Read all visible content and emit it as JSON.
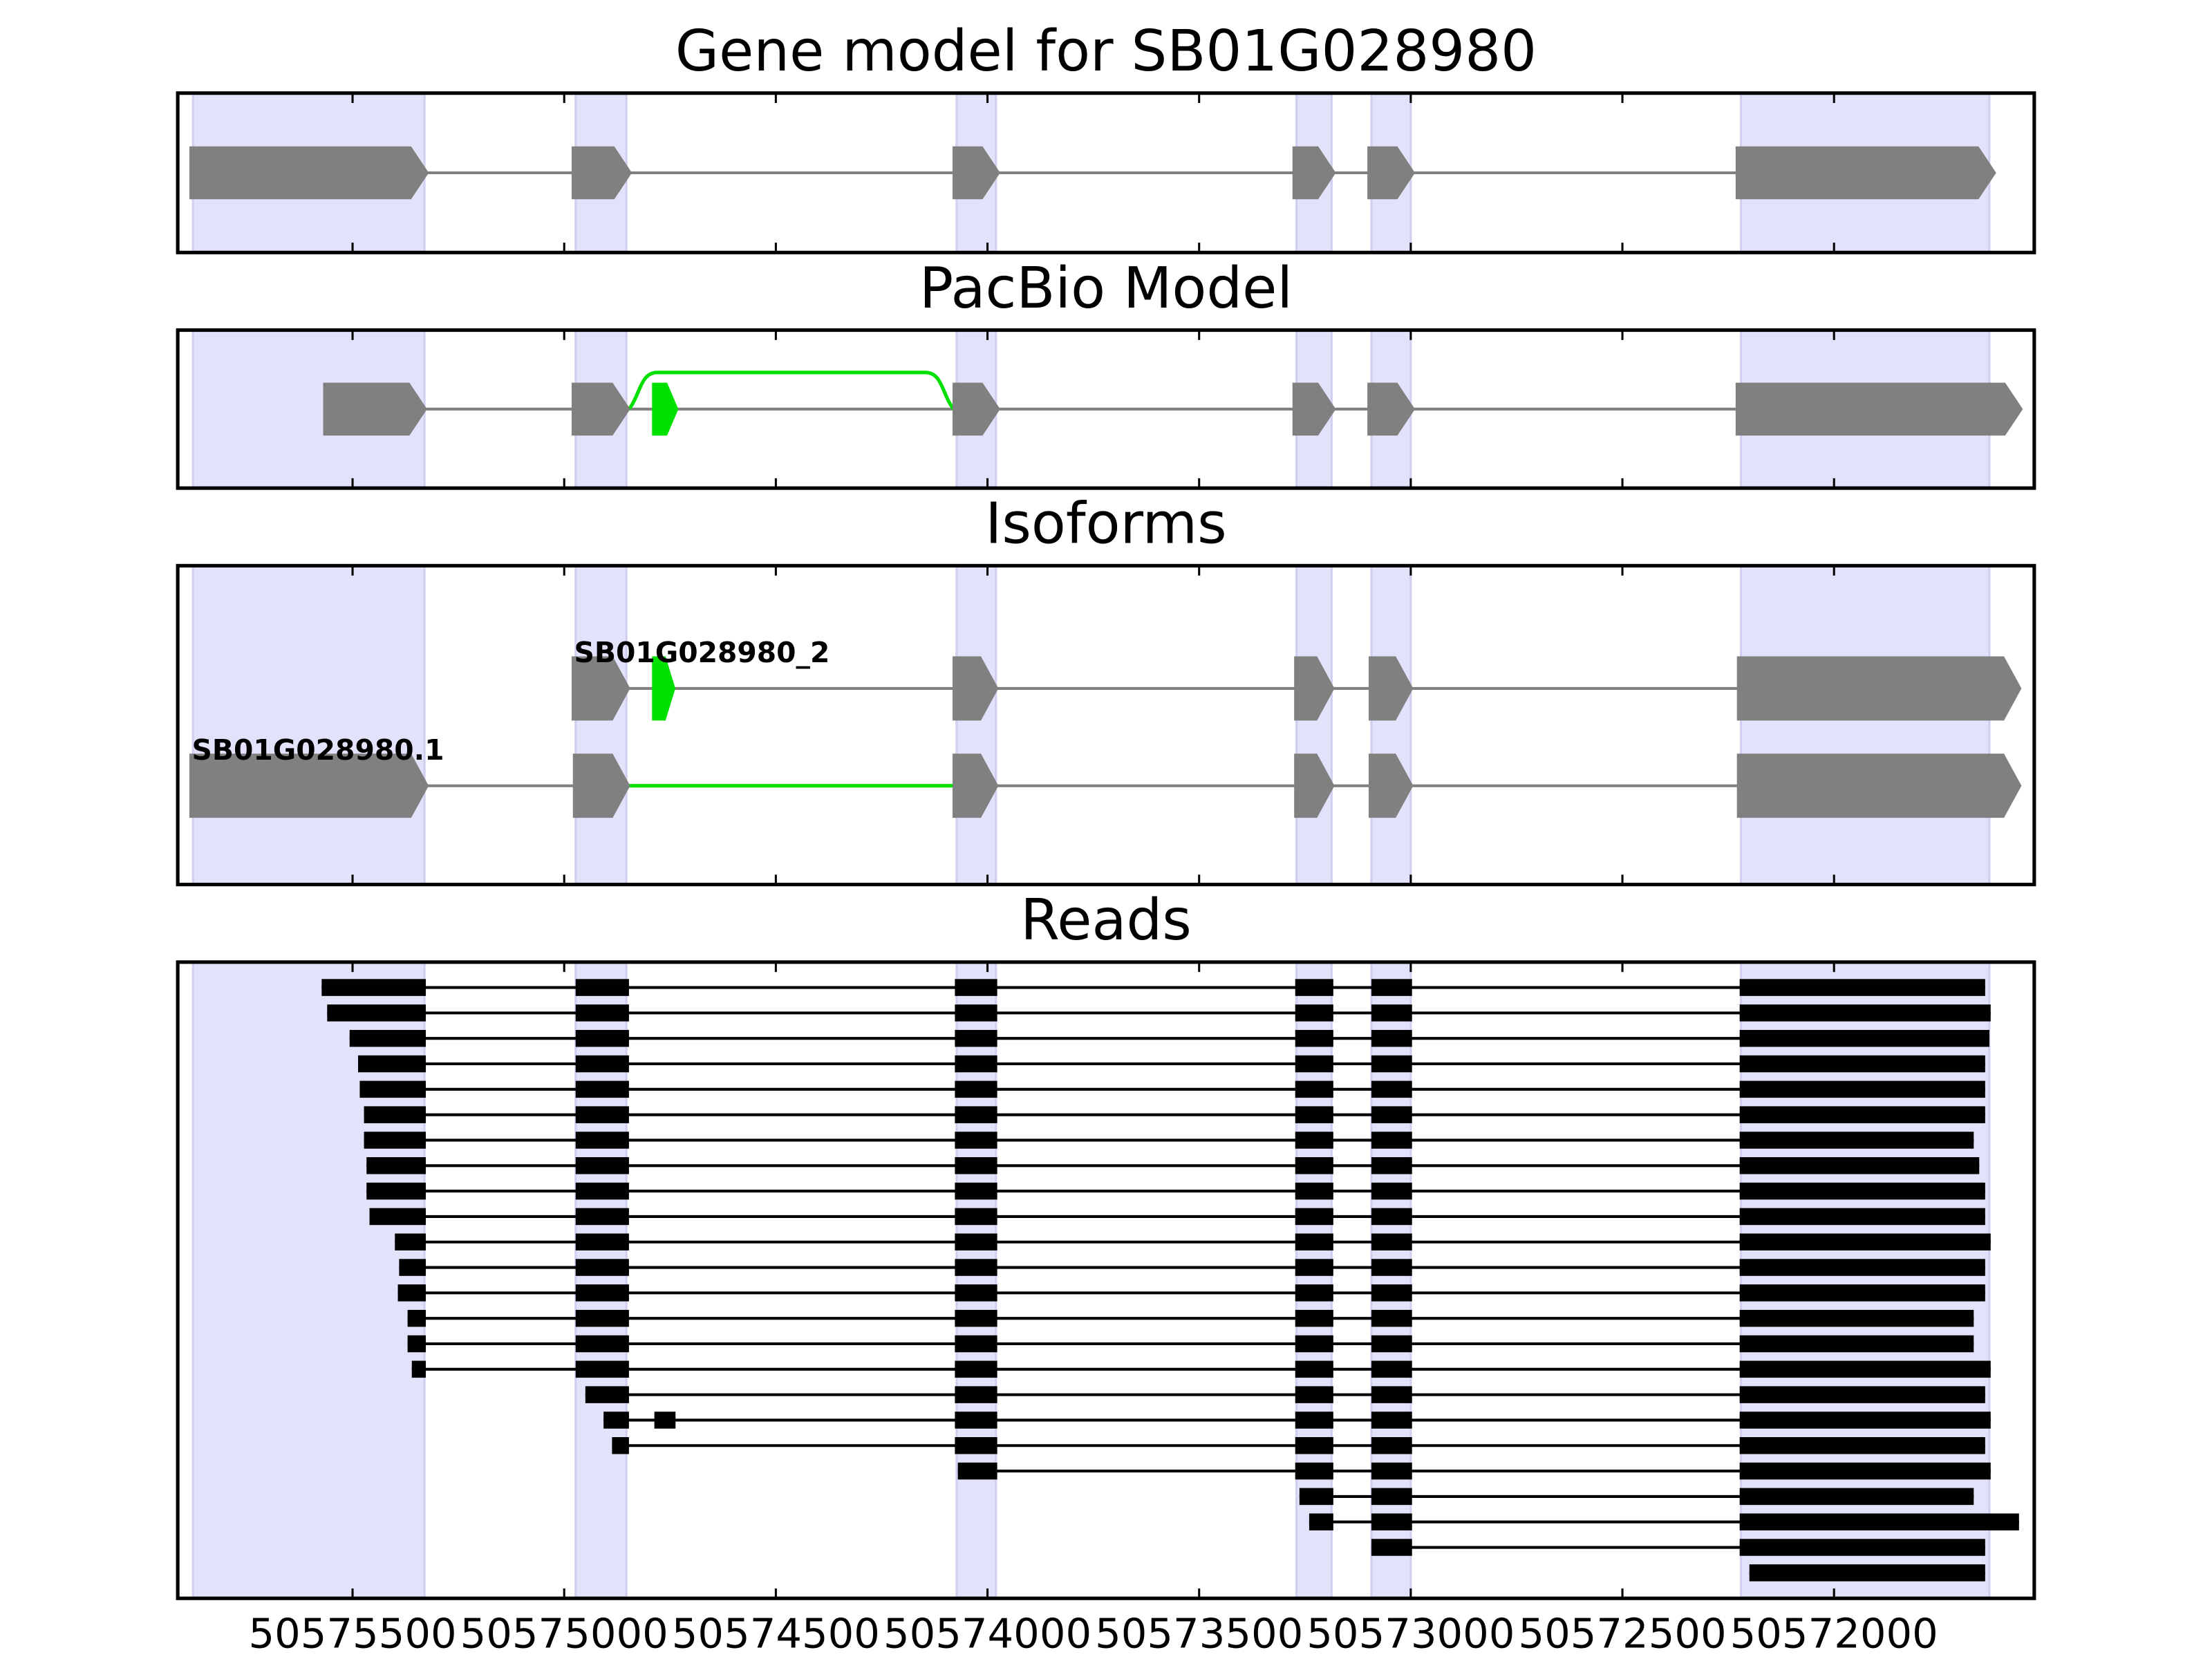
{
  "chart_data": {
    "xlim": [
      50575913,
      50571527
    ],
    "xticks": [
      50575500,
      50575000,
      50574500,
      50574000,
      50573500,
      50573000,
      50572500,
      50572000
    ],
    "highlight_regions": [
      [
        50575877,
        50575330
      ],
      [
        50574973,
        50574853
      ],
      [
        50574073,
        50573980
      ],
      [
        50573270,
        50573187
      ],
      [
        50573093,
        50573000
      ],
      [
        50572220,
        50571633
      ]
    ],
    "highlight_color": "#e2e2fb",
    "exon_color": "#808080",
    "novel_color": "#00e000",
    "read_color": "#000000",
    "panels": [
      {
        "type": "gene-model",
        "title": "Gene model for SB01G028980",
        "exons": [
          [
            50575883,
            50575323
          ],
          [
            50574980,
            50574843
          ],
          [
            50574080,
            50573973
          ],
          [
            50573277,
            50573180
          ],
          [
            50573100,
            50572993
          ],
          [
            50572230,
            50571620
          ]
        ]
      },
      {
        "type": "pacbio",
        "title": "PacBio Model",
        "exons": [
          [
            50575567,
            50575327
          ],
          [
            50574980,
            50574847
          ],
          [
            50574080,
            50573973
          ],
          [
            50573277,
            50573180
          ],
          [
            50573100,
            50572993
          ],
          [
            50572230,
            50571557
          ]
        ],
        "novel_exons": [
          [
            50574790,
            50574733
          ]
        ],
        "novel_junctions": [
          [
            50574847,
            50574080
          ]
        ]
      },
      {
        "type": "isoforms",
        "title": "Isoforms",
        "isoforms": [
          {
            "name": "SB01G028980_2",
            "exons": [
              [
                50574980,
                50574847
              ],
              [
                50574080,
                50573977
              ],
              [
                50573273,
                50573183
              ],
              [
                50573097,
                50572997
              ],
              [
                50572227,
                50571560
              ]
            ],
            "novel_exons": [
              [
                50574790,
                50574740
              ]
            ]
          },
          {
            "name": "SB01G028980.1",
            "exons": [
              [
                50575883,
                50575323
              ],
              [
                50574977,
                50574847
              ],
              [
                50574080,
                50573977
              ],
              [
                50573273,
                50573183
              ],
              [
                50573097,
                50572997
              ],
              [
                50572227,
                50571560
              ]
            ],
            "novel_introns": [
              [
                50574847,
                50574080
              ]
            ]
          }
        ]
      },
      {
        "type": "reads",
        "title": "Reads",
        "reads": [
          [
            [
              50575573,
              50575327
            ],
            [
              50574973,
              50574847
            ],
            [
              50574077,
              50573977
            ],
            [
              50573273,
              50573183
            ],
            [
              50573093,
              50572997
            ],
            [
              50572223,
              50571643
            ]
          ],
          [
            [
              50575560,
              50575327
            ],
            [
              50574973,
              50574847
            ],
            [
              50574077,
              50573977
            ],
            [
              50573273,
              50573183
            ],
            [
              50573093,
              50572997
            ],
            [
              50572223,
              50571630
            ]
          ],
          [
            [
              50575507,
              50575327
            ],
            [
              50574973,
              50574847
            ],
            [
              50574077,
              50573977
            ],
            [
              50573273,
              50573183
            ],
            [
              50573093,
              50572997
            ],
            [
              50572223,
              50571633
            ]
          ],
          [
            [
              50575487,
              50575327
            ],
            [
              50574973,
              50574847
            ],
            [
              50574077,
              50573977
            ],
            [
              50573273,
              50573183
            ],
            [
              50573093,
              50572997
            ],
            [
              50572223,
              50571643
            ]
          ],
          [
            [
              50575483,
              50575327
            ],
            [
              50574973,
              50574847
            ],
            [
              50574077,
              50573977
            ],
            [
              50573273,
              50573183
            ],
            [
              50573093,
              50572997
            ],
            [
              50572223,
              50571643
            ]
          ],
          [
            [
              50575473,
              50575327
            ],
            [
              50574973,
              50574847
            ],
            [
              50574077,
              50573977
            ],
            [
              50573273,
              50573183
            ],
            [
              50573093,
              50572997
            ],
            [
              50572223,
              50571643
            ]
          ],
          [
            [
              50575473,
              50575327
            ],
            [
              50574973,
              50574847
            ],
            [
              50574077,
              50573977
            ],
            [
              50573273,
              50573183
            ],
            [
              50573093,
              50572997
            ],
            [
              50572223,
              50571670
            ]
          ],
          [
            [
              50575467,
              50575327
            ],
            [
              50574973,
              50574847
            ],
            [
              50574077,
              50573977
            ],
            [
              50573273,
              50573183
            ],
            [
              50573093,
              50572997
            ],
            [
              50572223,
              50571657
            ]
          ],
          [
            [
              50575467,
              50575327
            ],
            [
              50574973,
              50574847
            ],
            [
              50574077,
              50573977
            ],
            [
              50573273,
              50573183
            ],
            [
              50573093,
              50572997
            ],
            [
              50572223,
              50571643
            ]
          ],
          [
            [
              50575460,
              50575327
            ],
            [
              50574973,
              50574847
            ],
            [
              50574077,
              50573977
            ],
            [
              50573273,
              50573183
            ],
            [
              50573093,
              50572997
            ],
            [
              50572223,
              50571643
            ]
          ],
          [
            [
              50575400,
              50575327
            ],
            [
              50574973,
              50574847
            ],
            [
              50574077,
              50573977
            ],
            [
              50573273,
              50573183
            ],
            [
              50573093,
              50572997
            ],
            [
              50572223,
              50571630
            ]
          ],
          [
            [
              50575390,
              50575327
            ],
            [
              50574973,
              50574847
            ],
            [
              50574077,
              50573977
            ],
            [
              50573273,
              50573183
            ],
            [
              50573093,
              50572997
            ],
            [
              50572223,
              50571643
            ]
          ],
          [
            [
              50575393,
              50575327
            ],
            [
              50574973,
              50574847
            ],
            [
              50574077,
              50573977
            ],
            [
              50573273,
              50573183
            ],
            [
              50573093,
              50572997
            ],
            [
              50572223,
              50571643
            ]
          ],
          [
            [
              50575370,
              50575327
            ],
            [
              50574973,
              50574847
            ],
            [
              50574077,
              50573977
            ],
            [
              50573273,
              50573183
            ],
            [
              50573093,
              50572997
            ],
            [
              50572223,
              50571670
            ]
          ],
          [
            [
              50575370,
              50575327
            ],
            [
              50574973,
              50574847
            ],
            [
              50574077,
              50573977
            ],
            [
              50573273,
              50573183
            ],
            [
              50573093,
              50572997
            ],
            [
              50572223,
              50571670
            ]
          ],
          [
            [
              50575360,
              50575327
            ],
            [
              50574973,
              50574847
            ],
            [
              50574077,
              50573977
            ],
            [
              50573273,
              50573183
            ],
            [
              50573093,
              50572997
            ],
            [
              50572223,
              50571630
            ]
          ],
          [
            [
              50574950,
              50574847
            ],
            [
              50574077,
              50573977
            ],
            [
              50573273,
              50573183
            ],
            [
              50573093,
              50572997
            ],
            [
              50572223,
              50571643
            ]
          ],
          [
            [
              50574907,
              50574847
            ],
            [
              50574787,
              50574737
            ],
            [
              50574077,
              50573977
            ],
            [
              50573273,
              50573183
            ],
            [
              50573093,
              50572997
            ],
            [
              50572223,
              50571630
            ]
          ],
          [
            [
              50574887,
              50574847
            ],
            [
              50574077,
              50573977
            ],
            [
              50573273,
              50573183
            ],
            [
              50573093,
              50572997
            ],
            [
              50572223,
              50571643
            ]
          ],
          [
            [
              50574070,
              50573977
            ],
            [
              50573273,
              50573183
            ],
            [
              50573093,
              50572997
            ],
            [
              50572223,
              50571630
            ]
          ],
          [
            [
              50573263,
              50573183
            ],
            [
              50573093,
              50572997
            ],
            [
              50572223,
              50571670
            ]
          ],
          [
            [
              50573240,
              50573183
            ],
            [
              50573093,
              50572997
            ],
            [
              50572223,
              50571563
            ]
          ],
          [
            [
              50573093,
              50572997
            ],
            [
              50572223,
              50571643
            ]
          ],
          [
            [
              50572200,
              50571643
            ]
          ]
        ]
      }
    ]
  }
}
